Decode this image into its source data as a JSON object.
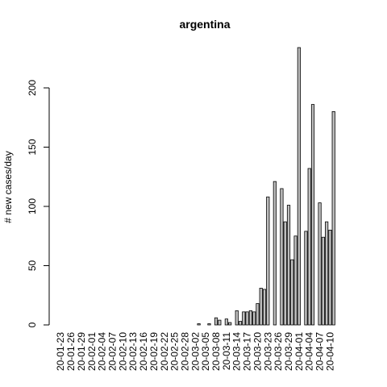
{
  "chart_data": {
    "type": "bar",
    "title": "argentina",
    "ylabel": "# new cases/day",
    "xlabel": "",
    "ylim": [
      0,
      235
    ],
    "yticks": [
      0,
      50,
      100,
      150,
      200
    ],
    "grid": false,
    "start_date": "2020-01-23",
    "x_tick_labels": [
      "20-01-23",
      "20-01-26",
      "20-01-29",
      "20-02-01",
      "20-02-04",
      "20-02-07",
      "20-02-10",
      "20-02-13",
      "20-02-16",
      "20-02-19",
      "20-02-22",
      "20-02-25",
      "20-02-28",
      "20-03-02",
      "20-03-05",
      "20-03-08",
      "20-03-11",
      "20-03-14",
      "20-03-17",
      "20-03-20",
      "20-03-23",
      "20-03-26",
      "20-03-29",
      "20-04-01",
      "20-04-04",
      "20-04-07",
      "20-04-10"
    ],
    "values": [
      0,
      0,
      0,
      0,
      0,
      0,
      0,
      0,
      0,
      0,
      0,
      0,
      0,
      0,
      0,
      0,
      0,
      0,
      0,
      0,
      0,
      0,
      0,
      0,
      0,
      0,
      0,
      0,
      0,
      0,
      0,
      0,
      0,
      0,
      0,
      0,
      0,
      0,
      0,
      0,
      1,
      0,
      0,
      1,
      0,
      6,
      4,
      0,
      5,
      2,
      0,
      12,
      3,
      11,
      11,
      12,
      11,
      18,
      31,
      30,
      108,
      0,
      121,
      0,
      115,
      87,
      101,
      55,
      75,
      234,
      0,
      79,
      132,
      186,
      0,
      103,
      74,
      87,
      80,
      180
    ]
  }
}
